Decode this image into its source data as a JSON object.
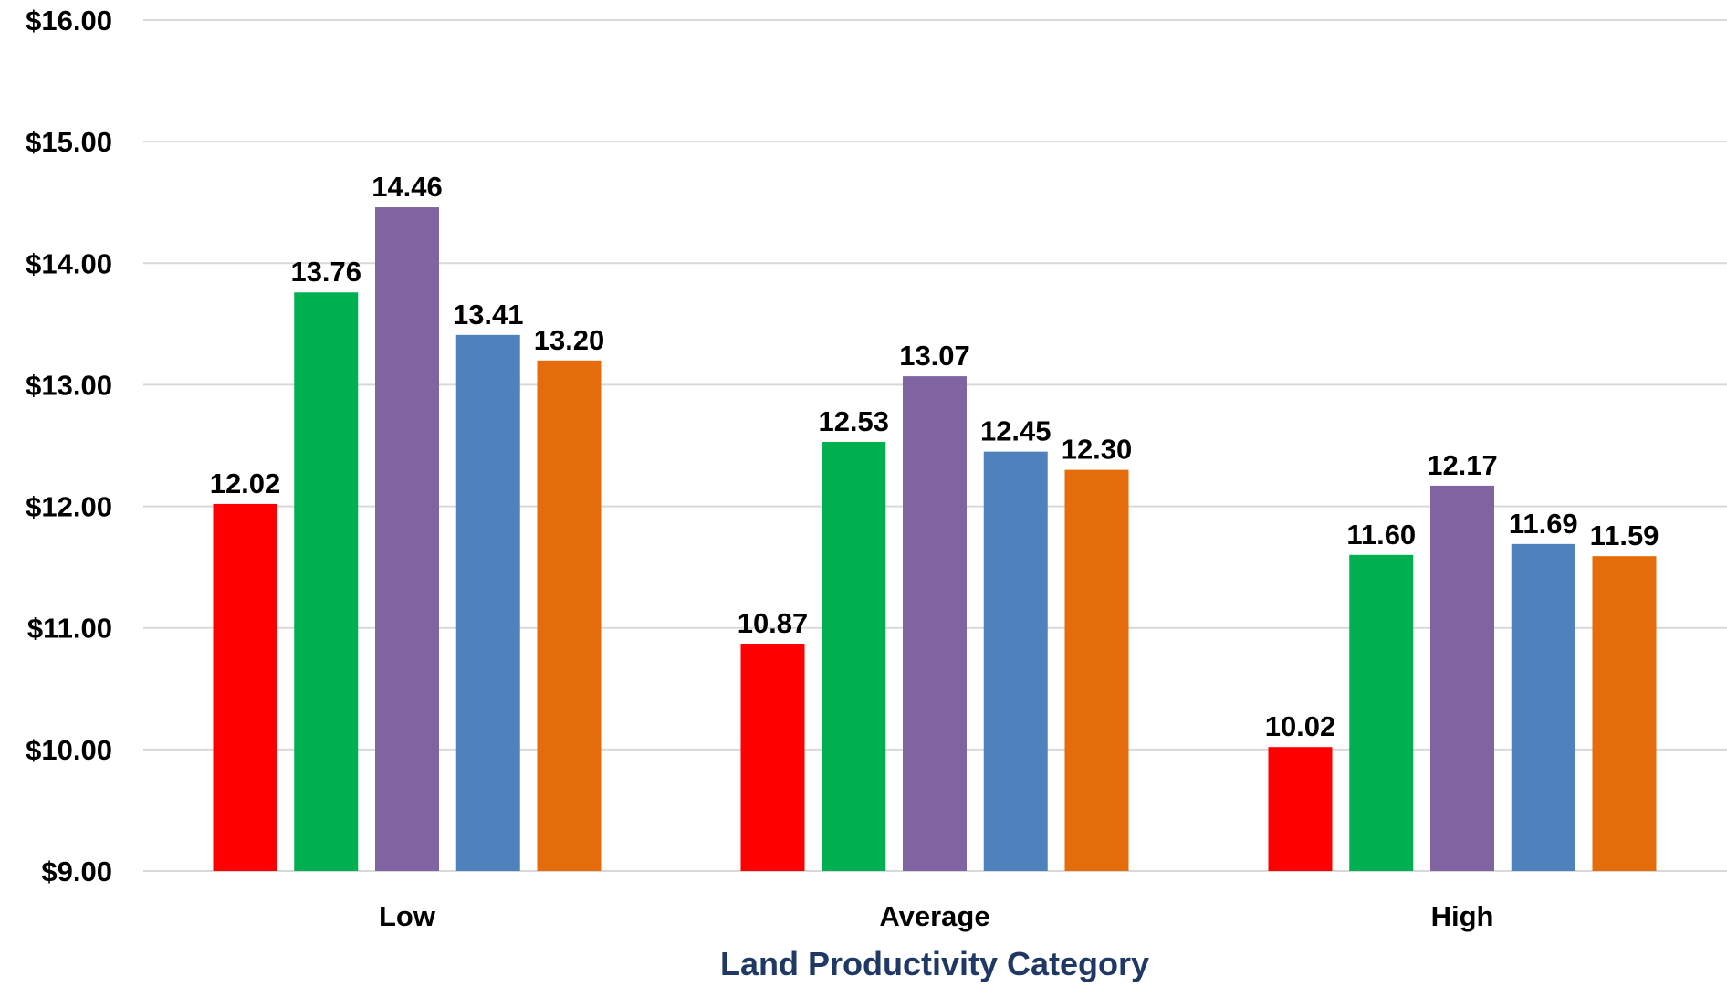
{
  "chart_data": {
    "type": "bar",
    "title": "",
    "xlabel": "Land Productivity Category",
    "ylabel": "",
    "ylim": [
      9,
      16
    ],
    "y_ticks": [
      9,
      10,
      11,
      12,
      13,
      14,
      15,
      16
    ],
    "y_tick_labels": [
      "$9.00",
      "$10.00",
      "$11.00",
      "$12.00",
      "$13.00",
      "$14.00",
      "$15.00",
      "$16.00"
    ],
    "grid": true,
    "legend": "none",
    "categories": [
      "Low",
      "Average",
      "High"
    ],
    "series": [
      {
        "color": "#ff0000",
        "values": [
          12.02,
          10.87,
          10.02
        ],
        "labels": [
          "12.02",
          "10.87",
          "10.02"
        ]
      },
      {
        "color": "#00b050",
        "values": [
          13.76,
          12.53,
          11.6
        ],
        "labels": [
          "13.76",
          "12.53",
          "11.60"
        ]
      },
      {
        "color": "#8064a2",
        "values": [
          14.46,
          13.07,
          12.17
        ],
        "labels": [
          "14.46",
          "13.07",
          "12.17"
        ]
      },
      {
        "color": "#4f81bd",
        "values": [
          13.41,
          12.45,
          11.69
        ],
        "labels": [
          "13.41",
          "12.45",
          "11.69"
        ]
      },
      {
        "color": "#e46c0a",
        "values": [
          13.2,
          12.3,
          11.59
        ],
        "labels": [
          "13.20",
          "12.30",
          "11.59"
        ]
      }
    ]
  }
}
